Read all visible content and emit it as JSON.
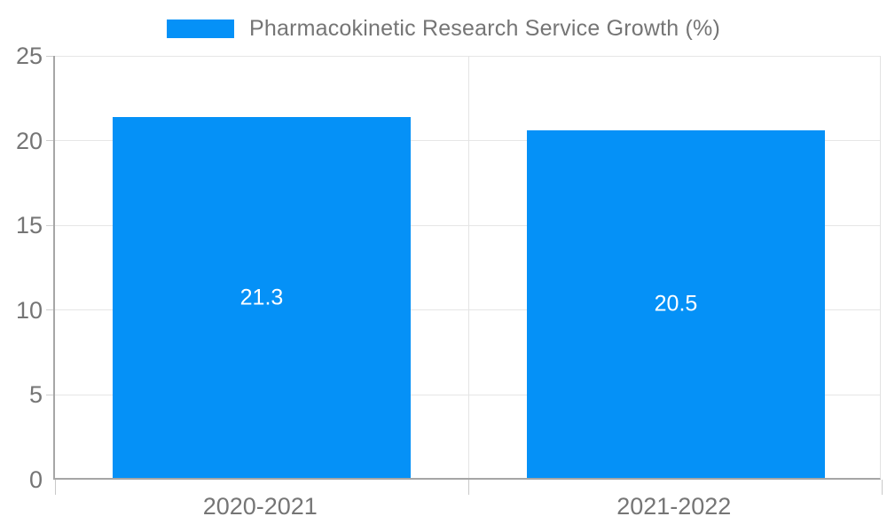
{
  "chart_data": {
    "type": "bar",
    "title": "Pharmacokinetic Research Service Growth (%)",
    "categories": [
      "2020-2021",
      "2021-2022"
    ],
    "series": [
      {
        "name": "Pharmacokinetic Research Service Growth (%)",
        "values": [
          21.3,
          20.5
        ]
      }
    ],
    "data_labels": [
      "21.3",
      "20.5"
    ],
    "xlabel": "",
    "ylabel": "",
    "ylim": [
      0,
      25
    ],
    "yticks": [
      0,
      5,
      10,
      15,
      20,
      25
    ],
    "grid": true,
    "legend_position": "top"
  },
  "legend": {
    "label": "Pharmacokinetic Research Service Growth (%)",
    "swatch_color": "#0591f7"
  },
  "colors": {
    "bar": "#0591f7",
    "bar_value_text": "#ffffff",
    "axis_text": "#757575",
    "axis_line": "#a6a6a6",
    "gridline": "#e6e6e6",
    "background": "#ffffff"
  }
}
